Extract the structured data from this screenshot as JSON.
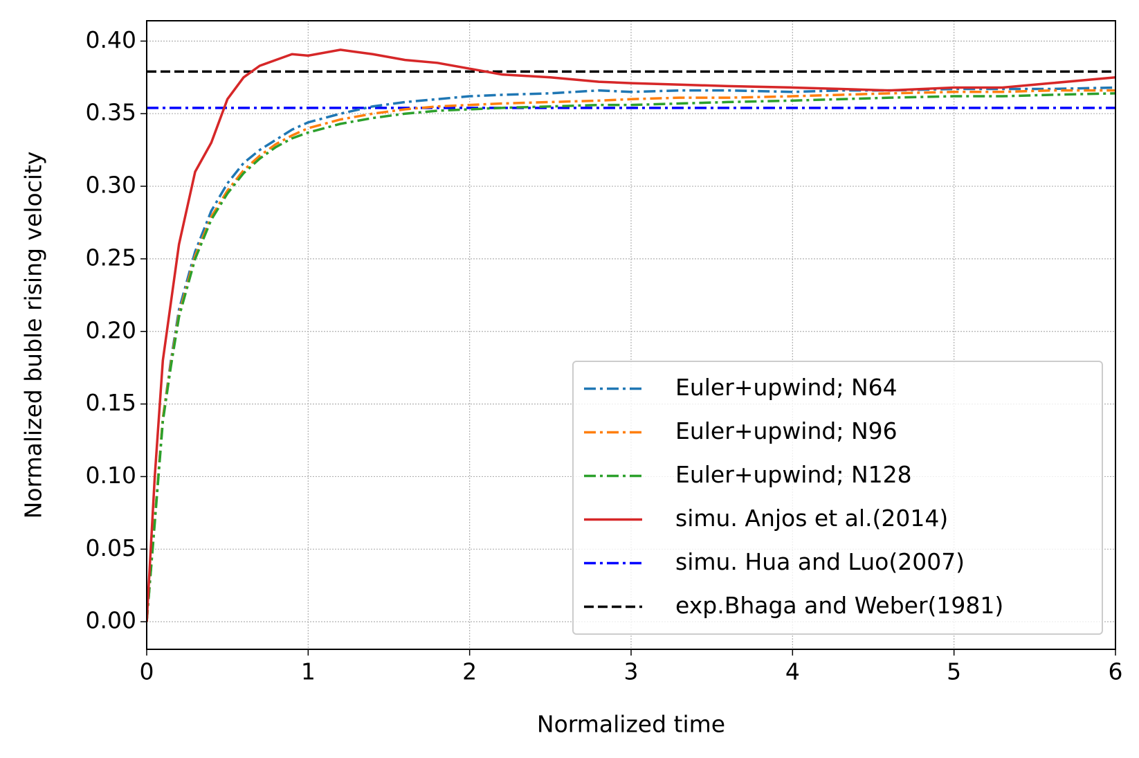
{
  "chart_data": {
    "type": "line",
    "xlabel": "Normalized time",
    "ylabel": "Normalized buble rising velocity",
    "x": [
      0,
      0.05,
      0.1,
      0.15,
      0.2,
      0.3,
      0.4,
      0.5,
      0.6,
      0.7,
      0.8,
      0.9,
      1.0,
      1.2,
      1.4,
      1.6,
      1.8,
      2.0,
      2.2,
      2.5,
      2.8,
      3.0,
      3.3,
      3.6,
      4.0,
      4.3,
      4.6,
      5.0,
      5.3,
      5.6,
      6.0
    ],
    "series": [
      {
        "name": "Euler+upwind; N64",
        "color": "#1f77b4",
        "dash": "dashdot",
        "values": [
          0,
          0.07,
          0.14,
          0.18,
          0.215,
          0.255,
          0.283,
          0.302,
          0.316,
          0.325,
          0.332,
          0.339,
          0.344,
          0.35,
          0.355,
          0.358,
          0.36,
          0.362,
          0.363,
          0.364,
          0.366,
          0.365,
          0.366,
          0.366,
          0.365,
          0.366,
          0.366,
          0.367,
          0.367,
          0.367,
          0.368
        ]
      },
      {
        "name": "Euler+upwind; N96",
        "color": "#ff7f0e",
        "dash": "dashdot",
        "values": [
          0,
          0.07,
          0.14,
          0.178,
          0.212,
          0.252,
          0.279,
          0.297,
          0.311,
          0.321,
          0.329,
          0.335,
          0.34,
          0.346,
          0.35,
          0.353,
          0.355,
          0.356,
          0.357,
          0.358,
          0.359,
          0.36,
          0.361,
          0.361,
          0.362,
          0.363,
          0.364,
          0.365,
          0.365,
          0.366,
          0.366
        ]
      },
      {
        "name": "Euler+upwind; N128",
        "color": "#2ca02c",
        "dash": "dashdot",
        "values": [
          0,
          0.068,
          0.138,
          0.176,
          0.21,
          0.25,
          0.277,
          0.295,
          0.309,
          0.319,
          0.327,
          0.333,
          0.337,
          0.343,
          0.347,
          0.35,
          0.352,
          0.353,
          0.354,
          0.355,
          0.356,
          0.356,
          0.357,
          0.358,
          0.359,
          0.36,
          0.361,
          0.362,
          0.362,
          0.363,
          0.364
        ]
      },
      {
        "name": "simu. Anjos et al.(2014)",
        "color": "#d62728",
        "dash": "solid",
        "values": [
          0,
          0.1,
          0.18,
          0.22,
          0.26,
          0.31,
          0.33,
          0.36,
          0.375,
          0.383,
          0.387,
          0.391,
          0.39,
          0.394,
          0.391,
          0.387,
          0.385,
          0.381,
          0.377,
          0.375,
          0.372,
          0.371,
          0.37,
          0.369,
          0.368,
          0.367,
          0.366,
          0.368,
          0.368,
          0.371,
          0.375
        ]
      }
    ],
    "reference_lines": [
      {
        "name": "simu. Hua and Luo(2007)",
        "color": "#0000ff",
        "dash": "dashdot",
        "value": 0.354
      },
      {
        "name": "exp.Bhaga and Weber(1981)",
        "color": "#000000",
        "dash": "dashed",
        "value": 0.379
      }
    ],
    "xlim": [
      0,
      6
    ],
    "xticks": [
      0,
      1,
      2,
      3,
      4,
      5,
      6
    ],
    "ylim": [
      -0.019,
      0.414
    ],
    "yticks": [
      {
        "value": 0,
        "label": "0.00"
      },
      0.05,
      {
        "value": 0.1,
        "label": "0.10"
      },
      0.15,
      {
        "value": 0.2,
        "label": "0.20"
      },
      0.25,
      {
        "value": 0.3,
        "label": "0.30"
      },
      0.35,
      {
        "value": 0.4,
        "label": "0.40"
      }
    ],
    "grid": true,
    "legend": "lower right"
  }
}
